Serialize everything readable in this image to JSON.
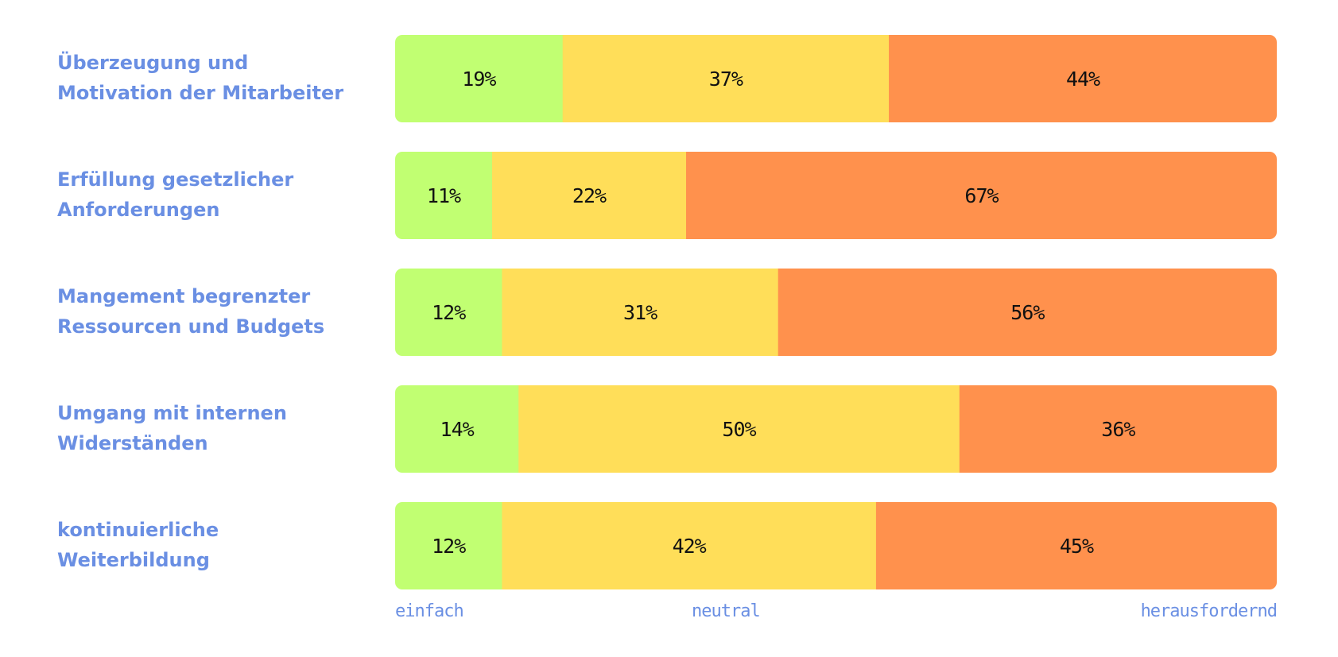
{
  "chart_data": {
    "type": "bar",
    "orientation": "horizontal",
    "stacked": true,
    "normalized_percent": true,
    "categories": [
      [
        "Überzeugung und",
        "Motivation der Mitarbeiter"
      ],
      [
        "Erfüllung gesetzlicher",
        "Anforderungen"
      ],
      [
        "Mangement begrenzter",
        "Ressourcen und Budgets"
      ],
      [
        "Umgang mit internen",
        "Widerständen"
      ],
      [
        "kontinuierliche",
        "Weiterbildung"
      ]
    ],
    "series": [
      {
        "key": "einfach",
        "color": "#c1ff72",
        "values": [
          19,
          11,
          12,
          14,
          12
        ]
      },
      {
        "key": "neutral",
        "color": "#ffde59",
        "values": [
          37,
          22,
          31,
          50,
          42
        ]
      },
      {
        "key": "herausfordernd",
        "color": "#ff914d",
        "values": [
          44,
          67,
          56,
          36,
          45
        ]
      }
    ],
    "value_labels": [
      [
        "19%",
        "37%",
        "44%"
      ],
      [
        "11%",
        "22%",
        "67%"
      ],
      [
        "12%",
        "31%",
        "56%"
      ],
      [
        "14%",
        "50%",
        "36%"
      ],
      [
        "12%",
        "42%",
        "45%"
      ]
    ],
    "scale_labels": [
      "einfach",
      "neutral",
      "herausfordernd"
    ],
    "xlim": [
      0,
      100
    ],
    "grid": false,
    "legend": "none"
  },
  "colors": {
    "label_text": "#6a8fe3",
    "value_text": "#111111"
  }
}
